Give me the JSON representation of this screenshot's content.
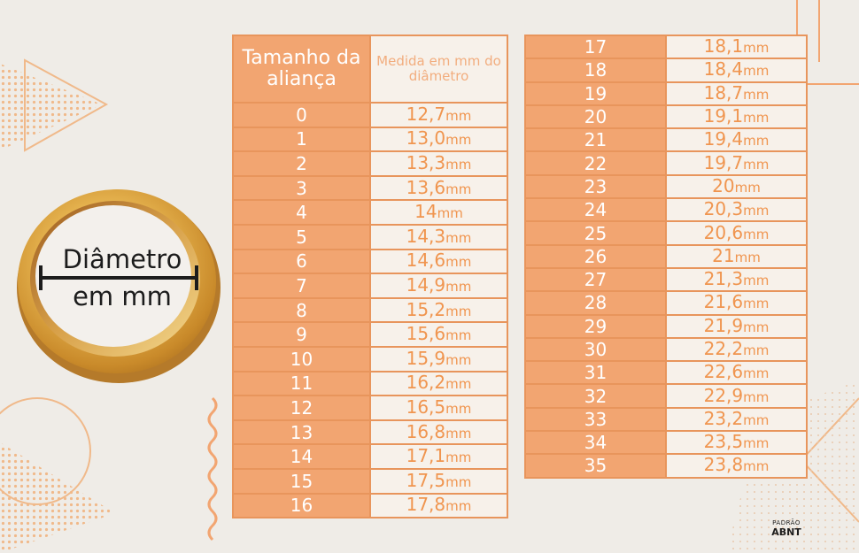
{
  "header": {
    "size_label": "Tamanho da aliança",
    "measure_label": "Medida em mm do diâmetro"
  },
  "unit": "mm",
  "sizes": [
    {
      "size": "0",
      "value": "12,7"
    },
    {
      "size": "1",
      "value": "13,0"
    },
    {
      "size": "2",
      "value": "13,3"
    },
    {
      "size": "3",
      "value": "13,6"
    },
    {
      "size": "4",
      "value": "14"
    },
    {
      "size": "5",
      "value": "14,3"
    },
    {
      "size": "6",
      "value": "14,6"
    },
    {
      "size": "7",
      "value": "14,9"
    },
    {
      "size": "8",
      "value": "15,2"
    },
    {
      "size": "9",
      "value": "15,6"
    },
    {
      "size": "10",
      "value": "15,9"
    },
    {
      "size": "11",
      "value": "16,2"
    },
    {
      "size": "12",
      "value": "16,5"
    },
    {
      "size": "13",
      "value": "16,8"
    },
    {
      "size": "14",
      "value": "17,1"
    },
    {
      "size": "15",
      "value": "17,5"
    },
    {
      "size": "16",
      "value": "17,8"
    },
    {
      "size": "17",
      "value": "18,1"
    },
    {
      "size": "18",
      "value": "18,4"
    },
    {
      "size": "19",
      "value": "18,7"
    },
    {
      "size": "20",
      "value": "19,1"
    },
    {
      "size": "21",
      "value": "19,4"
    },
    {
      "size": "22",
      "value": "19,7"
    },
    {
      "size": "23",
      "value": "20"
    },
    {
      "size": "24",
      "value": "20,3"
    },
    {
      "size": "25",
      "value": "20,6"
    },
    {
      "size": "26",
      "value": "21"
    },
    {
      "size": "27",
      "value": "21,3"
    },
    {
      "size": "28",
      "value": "21,6"
    },
    {
      "size": "29",
      "value": "21,9"
    },
    {
      "size": "30",
      "value": "22,2"
    },
    {
      "size": "31",
      "value": "22,6"
    },
    {
      "size": "32",
      "value": "22,9"
    },
    {
      "size": "33",
      "value": "23,2"
    },
    {
      "size": "34",
      "value": "23,5"
    },
    {
      "size": "35",
      "value": "23,8"
    }
  ],
  "ring_illustration": {
    "line1": "Diâmetro",
    "line2": "em mm"
  },
  "standard_badge": {
    "top": "PADRÃO",
    "bottom": "ABNT"
  },
  "colors": {
    "background": "#efece7",
    "accent_orange": "#f2a571",
    "value_text": "#f0954f",
    "gold": "#d9a441"
  }
}
